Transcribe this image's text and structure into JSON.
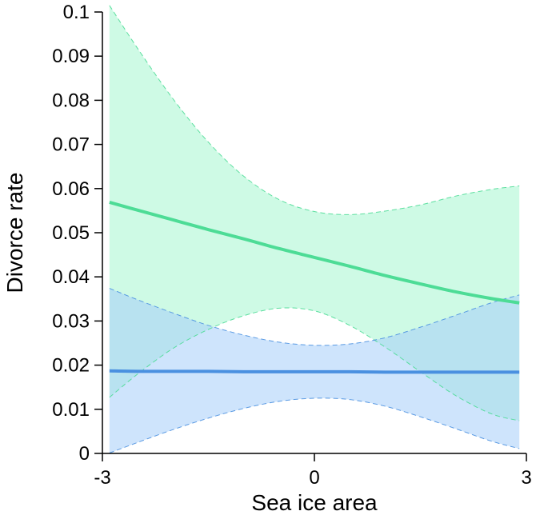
{
  "chart_data": {
    "type": "line",
    "title": "",
    "xlabel": "Sea ice area",
    "ylabel": "Divorce rate",
    "xlim": [
      -3,
      3
    ],
    "ylim": [
      0,
      0.1
    ],
    "xticks": [
      -3,
      0,
      3
    ],
    "xtick_labels": [
      "-3",
      "0",
      "3"
    ],
    "yticks": [
      0,
      0.01,
      0.02,
      0.03,
      0.04,
      0.05,
      0.06,
      0.07,
      0.08,
      0.09,
      0.1
    ],
    "ytick_labels": [
      "0",
      "0.01",
      "0.02",
      "0.03",
      "0.04",
      "0.05",
      "0.06",
      "0.07",
      "0.08",
      "0.09",
      "0.1"
    ],
    "grid": false,
    "legend": "none",
    "series": [
      {
        "color": "#4ddc96",
        "band_color": "#a6f5cf",
        "x": [
          -2.9,
          -2.5,
          -2.0,
          -1.5,
          -1.0,
          -0.5,
          0.0,
          0.5,
          1.0,
          1.5,
          2.0,
          2.5,
          2.9
        ],
        "mean": [
          0.0569,
          0.0551,
          0.0529,
          0.0507,
          0.0486,
          0.0464,
          0.0444,
          0.0424,
          0.0403,
          0.0384,
          0.0366,
          0.0351,
          0.0341
        ],
        "lower": [
          0.0127,
          0.018,
          0.0238,
          0.0281,
          0.0312,
          0.0329,
          0.0323,
          0.029,
          0.0241,
          0.0185,
          0.0131,
          0.009,
          0.0074
        ],
        "upper": [
          0.1015,
          0.0917,
          0.0803,
          0.0705,
          0.0628,
          0.0575,
          0.0548,
          0.0541,
          0.0549,
          0.0563,
          0.0583,
          0.0598,
          0.0606
        ]
      },
      {
        "color": "#4a90e0",
        "band_color": "#a6cdfa",
        "x": [
          -2.9,
          -2.5,
          -2.0,
          -1.5,
          -1.0,
          -0.5,
          0.0,
          0.5,
          1.0,
          1.5,
          2.0,
          2.5,
          2.9
        ],
        "mean": [
          0.0187,
          0.0186,
          0.0186,
          0.0186,
          0.0185,
          0.0185,
          0.0185,
          0.0185,
          0.0184,
          0.0184,
          0.0184,
          0.0184,
          0.0184
        ],
        "lower": [
          0.0001,
          0.0025,
          0.0054,
          0.008,
          0.0102,
          0.0118,
          0.0125,
          0.0122,
          0.0107,
          0.0083,
          0.0056,
          0.0028,
          0.0011
        ],
        "upper": [
          0.0374,
          0.0348,
          0.0318,
          0.029,
          0.0268,
          0.0252,
          0.0245,
          0.0248,
          0.0262,
          0.0286,
          0.0313,
          0.0341,
          0.0359
        ]
      }
    ]
  }
}
